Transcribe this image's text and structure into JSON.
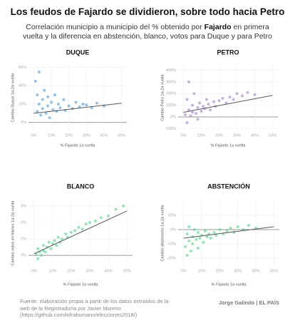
{
  "header": {
    "title": "Los feudos de Fajardo se dividieron, sobre todo hacia Petro",
    "subtitle": [
      "Correlación municipio a municipio del % obtenido por ",
      "Fajardo",
      " en primera vuelta y la diferencia en abstención, blanco, votos para Duque y para Petro"
    ]
  },
  "footer": {
    "source": "Fuente: elaboración propia a partir de los datos extraídos de la web de la Registraduría por Javier Moreno (https://github.com/infrahumano/elecciones2018/)",
    "credit": "Jorge Galindo | EL PAÍS"
  },
  "chart_data": [
    {
      "type": "scatter",
      "title": "DUQUE",
      "x_label": "% Fajardo 1a vuelta",
      "y_label": "Cambio Duque 1a-2a vuelta",
      "color": "#3a8fd6",
      "x": [
        1,
        2,
        2,
        3,
        3,
        4,
        5,
        5,
        6,
        7,
        8,
        8,
        9,
        10,
        11,
        12,
        13,
        14,
        15,
        17,
        18,
        20,
        22,
        24,
        26,
        28,
        30,
        33,
        36,
        40
      ],
      "y": [
        45,
        30,
        12,
        55,
        20,
        8,
        25,
        15,
        35,
        10,
        18,
        28,
        5,
        22,
        14,
        30,
        12,
        20,
        16,
        25,
        13,
        18,
        15,
        22,
        17,
        20,
        19,
        16,
        21,
        18
      ],
      "trend": {
        "x": [
          0,
          50
        ],
        "y": [
          10,
          21
        ]
      },
      "xlim": [
        -3,
        53
      ],
      "ylim": [
        -8,
        62
      ],
      "xticks": [
        {
          "value": 0,
          "label": "0%"
        },
        {
          "value": 10,
          "label": "10%"
        },
        {
          "value": 20,
          "label": "20%"
        },
        {
          "value": 30,
          "label": "30%"
        },
        {
          "value": 40,
          "label": "40%"
        },
        {
          "value": 50,
          "label": "50%"
        }
      ],
      "yticks": [
        {
          "value": 0,
          "label": "0%"
        },
        {
          "value": 20,
          "label": "20%"
        },
        {
          "value": 40,
          "label": "40%"
        },
        {
          "value": 60,
          "label": "60%"
        }
      ],
      "grid": true,
      "zero_line": true
    },
    {
      "type": "scatter",
      "title": "PETRO",
      "x_label": "% Fajardo 1a vuelta",
      "y_label": "Cambio Petro 1a-2a vuelta",
      "color": "#9b72c6",
      "x": [
        1,
        2,
        2,
        3,
        3,
        4,
        5,
        5,
        6,
        7,
        8,
        8,
        9,
        10,
        11,
        12,
        13,
        14,
        15,
        17,
        18,
        20,
        22,
        24,
        26,
        28,
        30,
        33,
        36,
        40
      ],
      "y": [
        20,
        150,
        -50,
        300,
        60,
        10,
        100,
        40,
        200,
        30,
        80,
        -20,
        120,
        50,
        90,
        70,
        150,
        110,
        60,
        130,
        90,
        140,
        160,
        120,
        170,
        150,
        200,
        180,
        210,
        190
      ],
      "trend": {
        "x": [
          0,
          50
        ],
        "y": [
          40,
          185
        ]
      },
      "xlim": [
        -3,
        53
      ],
      "ylim": [
        -110,
        440
      ],
      "xticks": [
        {
          "value": 0,
          "label": "0%"
        },
        {
          "value": 10,
          "label": "10%"
        },
        {
          "value": 20,
          "label": "20%"
        },
        {
          "value": 30,
          "label": "30%"
        },
        {
          "value": 40,
          "label": "40%"
        },
        {
          "value": 50,
          "label": "50%"
        }
      ],
      "yticks": [
        {
          "value": -100,
          "label": "-100%"
        },
        {
          "value": 0,
          "label": "0%"
        },
        {
          "value": 100,
          "label": "100%"
        },
        {
          "value": 200,
          "label": "200%"
        },
        {
          "value": 300,
          "label": "300%"
        },
        {
          "value": 400,
          "label": "400%"
        }
      ],
      "grid": true,
      "zero_line": true
    },
    {
      "type": "scatter",
      "title": "BLANCO",
      "x_label": "% Fajardo 1a vuelta",
      "y_label": "Cambio votos en blanco 1a-2a vuelta",
      "color": "#3ecf7a",
      "x": [
        1,
        2,
        2,
        3,
        4,
        5,
        5,
        6,
        7,
        8,
        9,
        10,
        11,
        12,
        13,
        14,
        15,
        17,
        18,
        20,
        22,
        24,
        26,
        28,
        30,
        33,
        36,
        40,
        44,
        48
      ],
      "y": [
        0.1,
        -0.2,
        0.4,
        0.2,
        0.0,
        0.3,
        0.6,
        0.2,
        0.5,
        0.8,
        0.4,
        0.7,
        0.9,
        0.6,
        1.1,
        0.8,
        1.0,
        1.3,
        1.1,
        1.4,
        1.5,
        1.7,
        1.6,
        1.9,
        2.0,
        2.1,
        2.3,
        2.4,
        2.8,
        3.0
      ],
      "trend": {
        "x": [
          0,
          50
        ],
        "y": [
          0.1,
          2.7
        ]
      },
      "xlim": [
        -3,
        53
      ],
      "ylim": [
        -0.6,
        3.3
      ],
      "xticks": [
        {
          "value": 0,
          "label": "0%"
        },
        {
          "value": 10,
          "label": "10%"
        },
        {
          "value": 20,
          "label": "20%"
        },
        {
          "value": 30,
          "label": "30%"
        },
        {
          "value": 40,
          "label": "40%"
        },
        {
          "value": 50,
          "label": "50%"
        }
      ],
      "yticks": [
        {
          "value": 0,
          "label": "0%"
        },
        {
          "value": 1,
          "label": "1%"
        },
        {
          "value": 2,
          "label": "2%"
        },
        {
          "value": 3,
          "label": "3%"
        }
      ],
      "grid": true,
      "zero_line": true
    },
    {
      "type": "scatter",
      "title": "ABSTENCIÓN",
      "x_label": "% Fajardo 1a vuelta",
      "y_label": "Cambio abstención 1a-2a vuelta",
      "color": "#3ecf7a",
      "x": [
        1,
        2,
        2,
        3,
        3,
        4,
        5,
        5,
        6,
        7,
        8,
        8,
        9,
        10,
        11,
        12,
        13,
        14,
        15,
        17,
        18,
        20,
        22,
        24,
        26,
        28,
        30,
        33,
        36,
        40
      ],
      "y": [
        -12,
        -3,
        -18,
        2,
        -8,
        -15,
        -5,
        -10,
        0,
        -7,
        -2,
        -13,
        -6,
        -4,
        -9,
        -1,
        -5,
        -3,
        -6,
        -2,
        -4,
        0,
        -3,
        -1,
        1,
        -2,
        2,
        0,
        3,
        1
      ],
      "trend": {
        "x": [
          0,
          50
        ],
        "y": [
          -6,
          2
        ]
      },
      "xlim": [
        -3,
        53
      ],
      "ylim": [
        -25,
        20
      ],
      "xticks": [
        {
          "value": 0,
          "label": "0%"
        },
        {
          "value": 10,
          "label": "10%"
        },
        {
          "value": 20,
          "label": "20%"
        },
        {
          "value": 30,
          "label": "30%"
        },
        {
          "value": 40,
          "label": "40%"
        },
        {
          "value": 50,
          "label": "50%"
        }
      ],
      "yticks": [
        {
          "value": -20,
          "label": "-20%"
        },
        {
          "value": -10,
          "label": "-10%"
        },
        {
          "value": 0,
          "label": "0%"
        },
        {
          "value": 10,
          "label": "10%"
        }
      ],
      "grid": true,
      "zero_line": true
    }
  ]
}
